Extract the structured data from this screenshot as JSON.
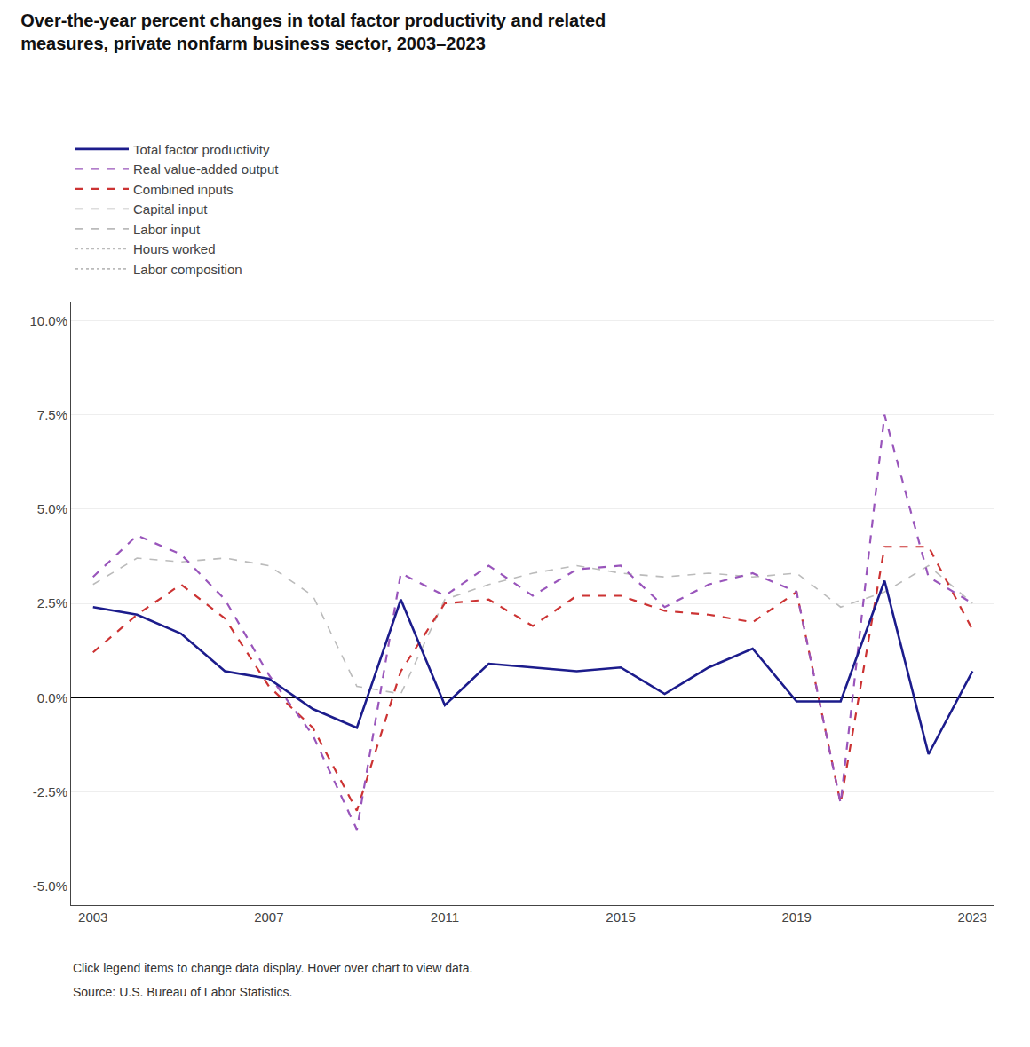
{
  "chart_data": {
    "type": "line",
    "title": "Over-the-year percent changes in total factor productivity and related",
    "subtitle": "measures, private nonfarm business sector, 2003–2023",
    "x": [
      2003,
      2004,
      2005,
      2006,
      2007,
      2008,
      2009,
      2010,
      2011,
      2012,
      2013,
      2014,
      2015,
      2016,
      2017,
      2018,
      2019,
      2020,
      2021,
      2022,
      2023
    ],
    "series": [
      {
        "name": "Total factor productivity",
        "color": "#1c1c8c",
        "line_style": "solid",
        "values": [
          2.4,
          2.2,
          1.7,
          0.7,
          0.5,
          -0.3,
          -0.8,
          2.6,
          -0.2,
          0.9,
          0.8,
          0.7,
          0.8,
          0.1,
          0.8,
          1.3,
          -0.1,
          -0.1,
          3.1,
          -1.5,
          0.7
        ]
      },
      {
        "name": "Real value-added output",
        "color": "#9955bb",
        "line_style": "dashed",
        "values": [
          3.2,
          4.3,
          3.8,
          2.6,
          0.6,
          -1.0,
          -3.5,
          3.3,
          2.7,
          3.5,
          2.7,
          3.4,
          3.5,
          2.4,
          3.0,
          3.3,
          2.8,
          -2.8,
          7.5,
          3.2,
          2.5
        ]
      },
      {
        "name": "Combined inputs",
        "color": "#cc3333",
        "line_style": "dashed",
        "values": [
          1.2,
          2.2,
          3.0,
          2.1,
          0.3,
          -0.8,
          -3.0,
          0.7,
          2.5,
          2.6,
          1.9,
          2.7,
          2.7,
          2.3,
          2.2,
          2.0,
          2.8,
          -2.8,
          4.0,
          4.0,
          1.8
        ]
      },
      {
        "name": "Capital input",
        "color": "#bbbbbb",
        "line_style": "dashed",
        "values": [
          3.0,
          3.7,
          3.6,
          3.7,
          3.5,
          2.7,
          0.3,
          0.1,
          2.6,
          3.0,
          3.3,
          3.5,
          3.3,
          3.2,
          3.3,
          3.2,
          3.3,
          2.4,
          2.8,
          3.5,
          2.5
        ]
      },
      {
        "name": "Labor input",
        "color": "#bbbbbb",
        "line_style": "dashed",
        "values": [
          null,
          null,
          null,
          null,
          null,
          null,
          null,
          null,
          null,
          null,
          null,
          null,
          null,
          null,
          null,
          null,
          null,
          null,
          null,
          null,
          null
        ]
      },
      {
        "name": "Hours worked",
        "color": "#bbbbbb",
        "line_style": "dotted",
        "values": [
          null,
          null,
          null,
          null,
          null,
          null,
          null,
          null,
          null,
          null,
          null,
          null,
          null,
          null,
          null,
          null,
          null,
          null,
          null,
          null,
          null
        ]
      },
      {
        "name": "Labor composition",
        "color": "#bbbbbb",
        "line_style": "dotted",
        "values": [
          null,
          null,
          null,
          null,
          null,
          null,
          null,
          null,
          null,
          null,
          null,
          null,
          null,
          null,
          null,
          null,
          null,
          null,
          null,
          null,
          null
        ]
      }
    ],
    "xlim": [
      2002.5,
      2023.5
    ],
    "xticks": [
      2003,
      2007,
      2011,
      2015,
      2019,
      2023
    ],
    "ylim": [
      -5.5,
      10.5
    ],
    "yticks": [
      {
        "value": -5.0,
        "label": "-5.0%"
      },
      {
        "value": -2.5,
        "label": "-2.5%"
      },
      {
        "value": 0.0,
        "label": "0.0%"
      },
      {
        "value": 2.5,
        "label": "2.5%"
      },
      {
        "value": 5.0,
        "label": "5.0%"
      },
      {
        "value": 7.5,
        "label": "7.5%"
      },
      {
        "value": 10.0,
        "label": "10.0%"
      }
    ],
    "grid": "y",
    "legend": "top left",
    "annotations": [
      "Click legend items to change data display. Hover over chart to view data.",
      "Source: U.S. Bureau of Labor Statistics."
    ]
  }
}
